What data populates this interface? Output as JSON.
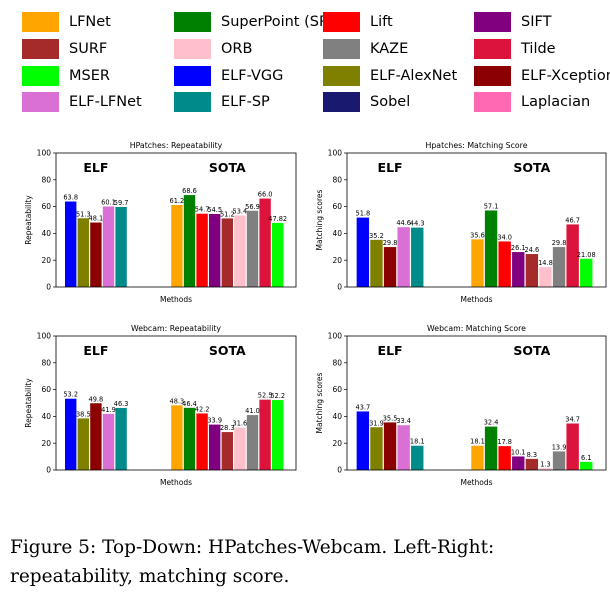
{
  "legend": {
    "items": [
      {
        "label": "LFNet",
        "color": "#ffa500"
      },
      {
        "label": "SuperPoint (SP)",
        "color": "#008000"
      },
      {
        "label": "Lift",
        "color": "#ff0000"
      },
      {
        "label": "SIFT",
        "color": "#800080"
      },
      {
        "label": "SURF",
        "color": "#a52a2a"
      },
      {
        "label": "ORB",
        "color": "#ffc0cb"
      },
      {
        "label": "KAZE",
        "color": "#808080"
      },
      {
        "label": "Tilde",
        "color": "#dc143c"
      },
      {
        "label": "MSER",
        "color": "#00ff00"
      },
      {
        "label": "ELF-VGG",
        "color": "#0000ff"
      },
      {
        "label": "ELF-AlexNet",
        "color": "#808000"
      },
      {
        "label": "ELF-Xception",
        "color": "#8b0000"
      },
      {
        "label": "ELF-LFNet",
        "color": "#da70d6"
      },
      {
        "label": "ELF-SP",
        "color": "#008b8b"
      },
      {
        "label": "Sobel",
        "color": "#191970"
      },
      {
        "label": "Laplacian",
        "color": "#ff69b4"
      }
    ]
  },
  "chart_data": [
    {
      "type": "bar",
      "title": "HPatches: Repeatability",
      "xlabel": "Methods",
      "ylabel": "Repeatability",
      "ylim": [
        0,
        100
      ],
      "yticks": [
        0,
        20,
        40,
        60,
        80,
        100
      ],
      "group_labels": [
        "ELF",
        "SOTA"
      ],
      "groups": [
        {
          "bars": [
            {
              "value": 63.8,
              "label": "63.8",
              "color": "#0000ff"
            },
            {
              "value": 51.3,
              "label": "51.3",
              "color": "#808000"
            },
            {
              "value": 48.1,
              "label": "48.1",
              "color": "#8b0000"
            },
            {
              "value": 60.1,
              "label": "60.1",
              "color": "#da70d6"
            },
            {
              "value": 59.7,
              "label": "59.7",
              "color": "#008b8b"
            }
          ]
        },
        {
          "bars": [
            {
              "value": 61.2,
              "label": "61.2",
              "color": "#ffa500"
            },
            {
              "value": 68.6,
              "label": "68.6",
              "color": "#008000"
            },
            {
              "value": 54.7,
              "label": "54.7",
              "color": "#ff0000"
            },
            {
              "value": 54.5,
              "label": "54.5",
              "color": "#800080"
            },
            {
              "value": 51.2,
              "label": "51.2",
              "color": "#a52a2a"
            },
            {
              "value": 53.4,
              "label": "53.4",
              "color": "#ffc0cb"
            },
            {
              "value": 56.9,
              "label": "56.9",
              "color": "#808080"
            },
            {
              "value": 66.0,
              "label": "66.0",
              "color": "#dc143c"
            },
            {
              "value": 47.82,
              "label": "47.82",
              "color": "#00ff00"
            }
          ]
        }
      ]
    },
    {
      "type": "bar",
      "title": "Hpatches: Matching Score",
      "xlabel": "Methods",
      "ylabel": "Matching scores",
      "ylim": [
        0,
        100
      ],
      "yticks": [
        0,
        20,
        40,
        60,
        80,
        100
      ],
      "group_labels": [
        "ELF",
        "SOTA"
      ],
      "groups": [
        {
          "bars": [
            {
              "value": 51.8,
              "label": "51.8",
              "color": "#0000ff"
            },
            {
              "value": 35.2,
              "label": "35.2",
              "color": "#808000"
            },
            {
              "value": 29.8,
              "label": "29.8",
              "color": "#8b0000"
            },
            {
              "value": 44.6,
              "label": "44.6",
              "color": "#da70d6"
            },
            {
              "value": 44.3,
              "label": "44.3",
              "color": "#008b8b"
            }
          ]
        },
        {
          "bars": [
            {
              "value": 35.6,
              "label": "35.6",
              "color": "#ffa500"
            },
            {
              "value": 57.1,
              "label": "57.1",
              "color": "#008000"
            },
            {
              "value": 34.0,
              "label": "34.0",
              "color": "#ff0000"
            },
            {
              "value": 26.1,
              "label": "26.1",
              "color": "#800080"
            },
            {
              "value": 24.6,
              "label": "24.6",
              "color": "#a52a2a"
            },
            {
              "value": 14.8,
              "label": "14.8",
              "color": "#ffc0cb"
            },
            {
              "value": 29.8,
              "label": "29.8",
              "color": "#808080"
            },
            {
              "value": 46.7,
              "label": "46.7",
              "color": "#dc143c"
            },
            {
              "value": 21.08,
              "label": "21.08",
              "color": "#00ff00"
            }
          ]
        }
      ]
    },
    {
      "type": "bar",
      "title": "Webcam: Repeatability",
      "xlabel": "Methods",
      "ylabel": "Repeatability",
      "ylim": [
        0,
        100
      ],
      "yticks": [
        0,
        20,
        40,
        60,
        80,
        100
      ],
      "group_labels": [
        "ELF",
        "SOTA"
      ],
      "groups": [
        {
          "bars": [
            {
              "value": 53.2,
              "label": "53.2",
              "color": "#0000ff"
            },
            {
              "value": 38.5,
              "label": "38.5",
              "color": "#808000"
            },
            {
              "value": 49.8,
              "label": "49.8",
              "color": "#8b0000"
            },
            {
              "value": 41.9,
              "label": "41.9",
              "color": "#da70d6"
            },
            {
              "value": 46.3,
              "label": "46.3",
              "color": "#008b8b"
            }
          ]
        },
        {
          "bars": [
            {
              "value": 48.3,
              "label": "48.3",
              "color": "#ffa500"
            },
            {
              "value": 46.4,
              "label": "46.4",
              "color": "#008000"
            },
            {
              "value": 42.2,
              "label": "42.2",
              "color": "#ff0000"
            },
            {
              "value": 33.9,
              "label": "33.9",
              "color": "#800080"
            },
            {
              "value": 28.3,
              "label": "28.3",
              "color": "#a52a2a"
            },
            {
              "value": 31.6,
              "label": "31.6",
              "color": "#ffc0cb"
            },
            {
              "value": 41.0,
              "label": "41.0",
              "color": "#808080"
            },
            {
              "value": 52.5,
              "label": "52.5",
              "color": "#dc143c"
            },
            {
              "value": 52.2,
              "label": "52.2",
              "color": "#00ff00"
            }
          ]
        }
      ]
    },
    {
      "type": "bar",
      "title": "Webcam: Matching Score",
      "xlabel": "Methods",
      "ylabel": "Matching scores",
      "ylim": [
        0,
        100
      ],
      "yticks": [
        0,
        20,
        40,
        60,
        80,
        100
      ],
      "group_labels": [
        "ELF",
        "SOTA"
      ],
      "groups": [
        {
          "bars": [
            {
              "value": 43.7,
              "label": "43.7",
              "color": "#0000ff"
            },
            {
              "value": 31.9,
              "label": "31.9",
              "color": "#808000"
            },
            {
              "value": 35.5,
              "label": "35.5",
              "color": "#8b0000"
            },
            {
              "value": 33.4,
              "label": "33.4",
              "color": "#da70d6"
            },
            {
              "value": 18.1,
              "label": "18.1",
              "color": "#008b8b"
            }
          ]
        },
        {
          "bars": [
            {
              "value": 18.1,
              "label": "18.1",
              "color": "#ffa500"
            },
            {
              "value": 32.4,
              "label": "32.4",
              "color": "#008000"
            },
            {
              "value": 17.8,
              "label": "17.8",
              "color": "#ff0000"
            },
            {
              "value": 10.1,
              "label": "10.1",
              "color": "#800080"
            },
            {
              "value": 8.3,
              "label": "8.3",
              "color": "#a52a2a"
            },
            {
              "value": 1.3,
              "label": "1.3",
              "color": "#ffc0cb"
            },
            {
              "value": 13.9,
              "label": "13.9",
              "color": "#808080"
            },
            {
              "value": 34.7,
              "label": "34.7",
              "color": "#dc143c"
            },
            {
              "value": 6.1,
              "label": "6.1",
              "color": "#00ff00"
            }
          ]
        }
      ]
    }
  ],
  "caption": "Figure 5: Top-Down: HPatches-Webcam. Left-Right: repeatability, matching score."
}
